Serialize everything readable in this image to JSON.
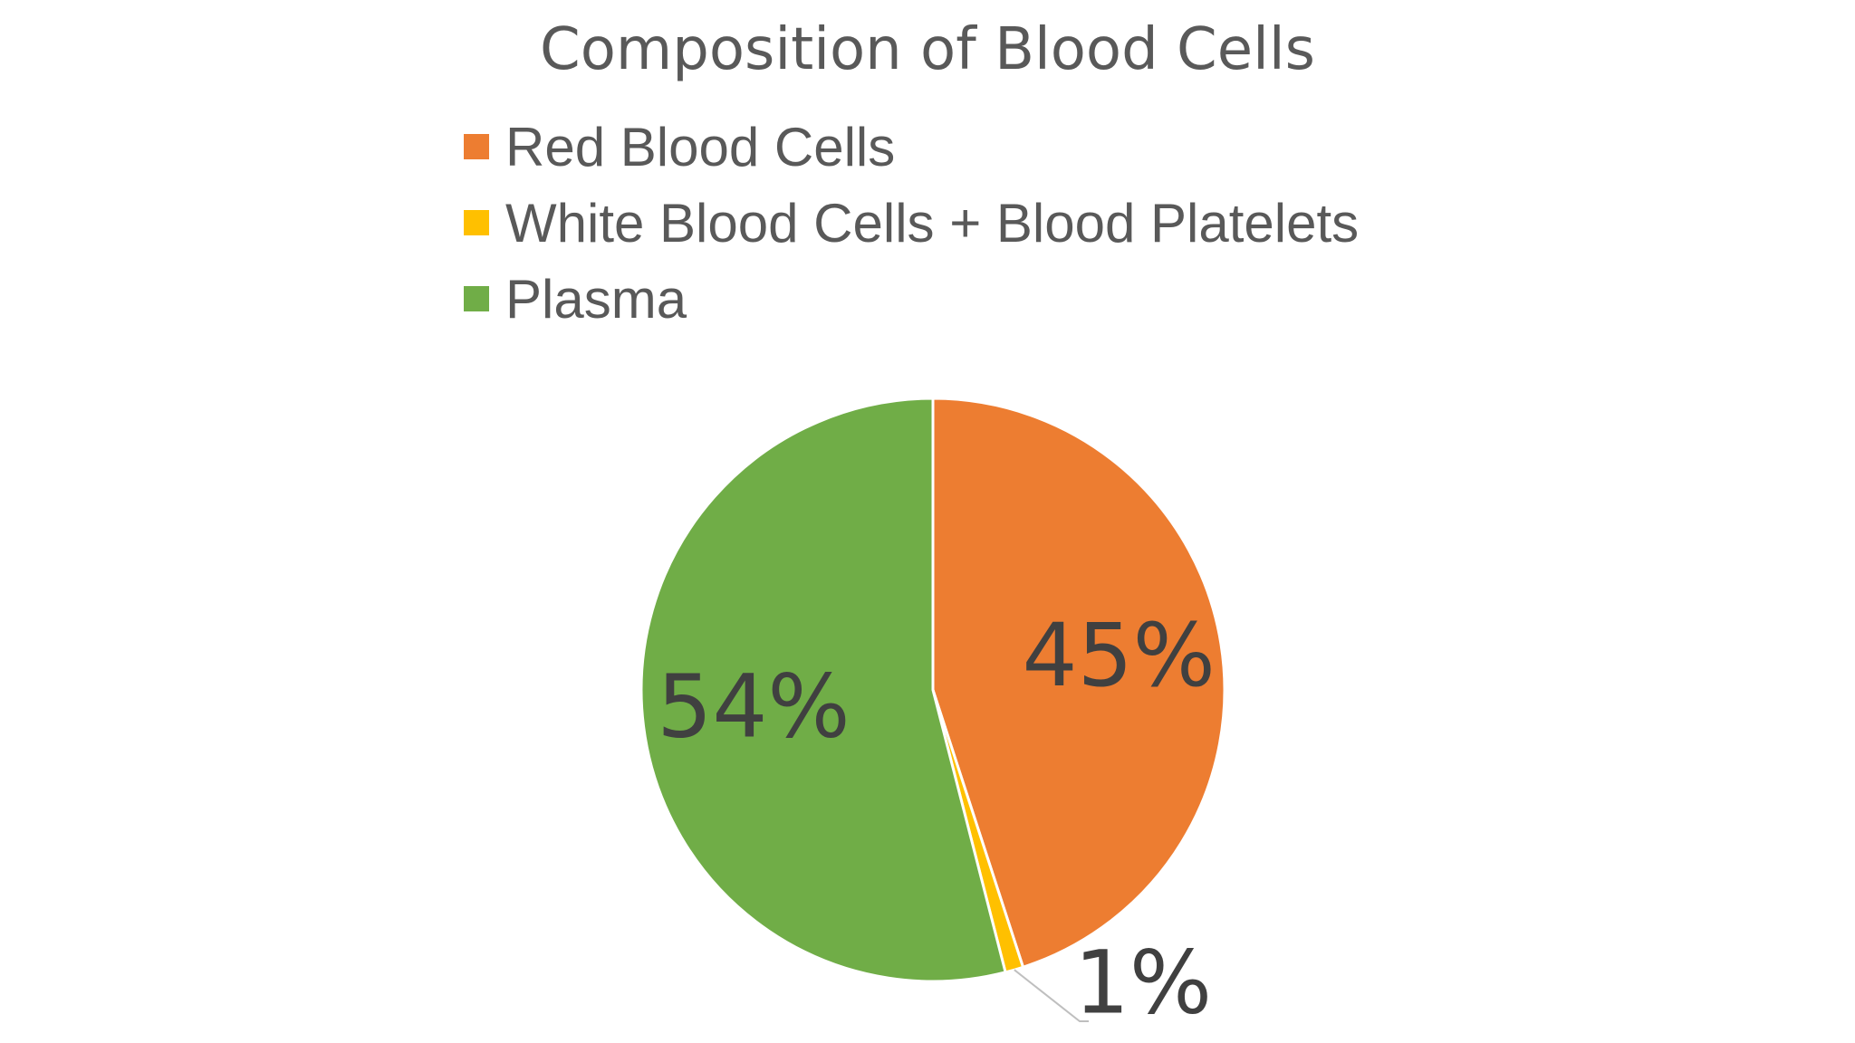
{
  "chart_data": {
    "type": "pie",
    "title": "Composition of Blood Cells",
    "legend_position": "top",
    "slices": [
      {
        "name": "Red Blood Cells",
        "value": 45,
        "label": "45%",
        "color": "#ED7D31"
      },
      {
        "name": "White Blood Cells + Blood Platelets",
        "value": 1,
        "label": "1%",
        "color": "#FFC000"
      },
      {
        "name": "Plasma",
        "value": 54,
        "label": "54%",
        "color": "#70AD47"
      }
    ]
  }
}
